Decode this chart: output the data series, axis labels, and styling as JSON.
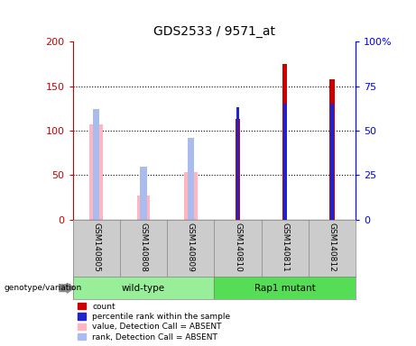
{
  "title": "GDS2533 / 9571_at",
  "categories": [
    "GSM140805",
    "GSM140808",
    "GSM140809",
    "GSM140810",
    "GSM140811",
    "GSM140812"
  ],
  "ylim_left": [
    0,
    200
  ],
  "ylim_right": [
    0,
    100
  ],
  "yticks_left": [
    0,
    50,
    100,
    150,
    200
  ],
  "yticks_right": [
    0,
    25,
    50,
    75,
    100
  ],
  "yticklabels_left": [
    "0",
    "50",
    "100",
    "150",
    "200"
  ],
  "yticklabels_right": [
    "0",
    "25",
    "50",
    "75",
    "100%"
  ],
  "count_values": [
    null,
    null,
    null,
    113,
    175,
    158
  ],
  "percentile_values": [
    null,
    null,
    null,
    63,
    65,
    65
  ],
  "absent_value_values": [
    107,
    27,
    53,
    null,
    null,
    null
  ],
  "absent_rank_values": [
    62,
    30,
    46,
    null,
    null,
    null
  ],
  "count_color": "#CC0000",
  "percentile_color": "#2222CC",
  "absent_value_color": "#FFB6C1",
  "absent_rank_color": "#AABBEE",
  "legend_items": [
    "count",
    "percentile rank within the sample",
    "value, Detection Call = ABSENT",
    "rank, Detection Call = ABSENT"
  ],
  "legend_colors": [
    "#CC0000",
    "#2222CC",
    "#FFB6C1",
    "#AABBEE"
  ],
  "wildtype_color": "#99EE99",
  "rap1_color": "#55DD55",
  "label_bg_color": "#CCCCCC"
}
